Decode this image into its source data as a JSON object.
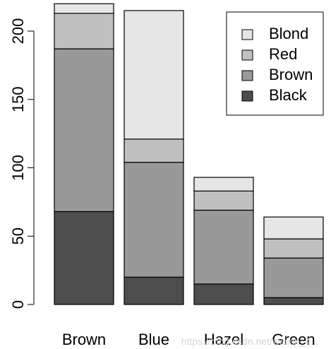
{
  "chart_data": {
    "type": "bar",
    "stacked": true,
    "categories": [
      "Brown",
      "Blue",
      "Hazel",
      "Green"
    ],
    "series": [
      {
        "name": "Black",
        "values": [
          68,
          20,
          15,
          5
        ],
        "color": "#4d4d4d"
      },
      {
        "name": "Brown",
        "values": [
          119,
          84,
          54,
          29
        ],
        "color": "#999999"
      },
      {
        "name": "Red",
        "values": [
          26,
          17,
          14,
          14
        ],
        "color": "#c0c0c0"
      },
      {
        "name": "Blond",
        "values": [
          7,
          94,
          10,
          16
        ],
        "color": "#e6e6e6"
      }
    ],
    "title": "",
    "xlabel": "",
    "ylabel": "",
    "ylim": [
      0,
      220
    ],
    "yticks": [
      0,
      50,
      100,
      150,
      200
    ],
    "legend": {
      "position": "top-right",
      "order": [
        "Blond",
        "Red",
        "Brown",
        "Black"
      ]
    },
    "grid": false
  },
  "watermark": "https://blog.csdn.net/weixin_4..."
}
